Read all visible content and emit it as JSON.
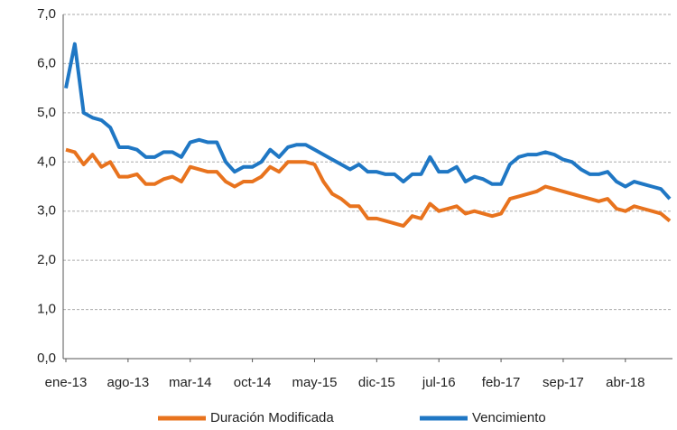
{
  "chart_data": {
    "type": "line",
    "categories": [
      "ene-13",
      null,
      null,
      null,
      null,
      null,
      null,
      "ago-13",
      null,
      null,
      null,
      null,
      null,
      null,
      "mar-14",
      null,
      null,
      null,
      null,
      null,
      null,
      "oct-14",
      null,
      null,
      null,
      null,
      null,
      null,
      "may-15",
      null,
      null,
      null,
      null,
      null,
      null,
      "dic-15",
      null,
      null,
      null,
      null,
      null,
      null,
      "jul-16",
      null,
      null,
      null,
      null,
      null,
      null,
      "feb-17",
      null,
      null,
      null,
      null,
      null,
      null,
      "sep-17",
      null,
      null,
      null,
      null,
      null,
      null,
      "abr-18",
      null,
      null,
      null,
      null,
      null
    ],
    "series": [
      {
        "name": "Duración Modificada",
        "color": "#e8731e",
        "values": [
          4.25,
          4.2,
          3.95,
          4.15,
          3.9,
          4.0,
          3.7,
          3.7,
          3.75,
          3.55,
          3.55,
          3.65,
          3.7,
          3.6,
          3.9,
          3.85,
          3.8,
          3.8,
          3.6,
          3.5,
          3.6,
          3.6,
          3.7,
          3.9,
          3.8,
          4.0,
          4.0,
          4.0,
          3.95,
          3.6,
          3.35,
          3.25,
          3.1,
          3.1,
          2.85,
          2.85,
          2.8,
          2.75,
          2.7,
          2.9,
          2.85,
          3.15,
          3.0,
          3.05,
          3.1,
          2.95,
          3.0,
          2.95,
          2.9,
          2.95,
          3.25,
          3.3,
          3.35,
          3.4,
          3.5,
          3.45,
          3.4,
          3.35,
          3.3,
          3.25,
          3.2,
          3.25,
          3.05,
          3.0,
          3.1,
          3.05,
          3.0,
          2.95,
          2.8
        ]
      },
      {
        "name": "Vencimiento",
        "color": "#1f77c4",
        "values": [
          5.5,
          6.4,
          5.0,
          4.9,
          4.85,
          4.7,
          4.3,
          4.3,
          4.25,
          4.1,
          4.1,
          4.2,
          4.2,
          4.1,
          4.4,
          4.45,
          4.4,
          4.4,
          4.0,
          3.8,
          3.9,
          3.9,
          4.0,
          4.25,
          4.1,
          4.3,
          4.35,
          4.35,
          4.25,
          4.15,
          4.05,
          3.95,
          3.85,
          3.95,
          3.8,
          3.8,
          3.75,
          3.75,
          3.6,
          3.75,
          3.75,
          4.1,
          3.8,
          3.8,
          3.9,
          3.6,
          3.7,
          3.65,
          3.55,
          3.55,
          3.95,
          4.1,
          4.15,
          4.15,
          4.2,
          4.15,
          4.05,
          4.0,
          3.85,
          3.75,
          3.75,
          3.8,
          3.6,
          3.5,
          3.6,
          3.55,
          3.5,
          3.45,
          3.25
        ]
      }
    ],
    "ylim": [
      0,
      7
    ],
    "yticks": [
      {
        "value": 0,
        "label": "0,0"
      },
      {
        "value": 1,
        "label": "1,0"
      },
      {
        "value": 2,
        "label": "2,0"
      },
      {
        "value": 3,
        "label": "3,0"
      },
      {
        "value": 4,
        "label": "4,0"
      },
      {
        "value": 5,
        "label": "5,0"
      },
      {
        "value": 6,
        "label": "6,0"
      },
      {
        "value": 7,
        "label": "7,0"
      }
    ],
    "grid": true,
    "legend": "bottom"
  }
}
